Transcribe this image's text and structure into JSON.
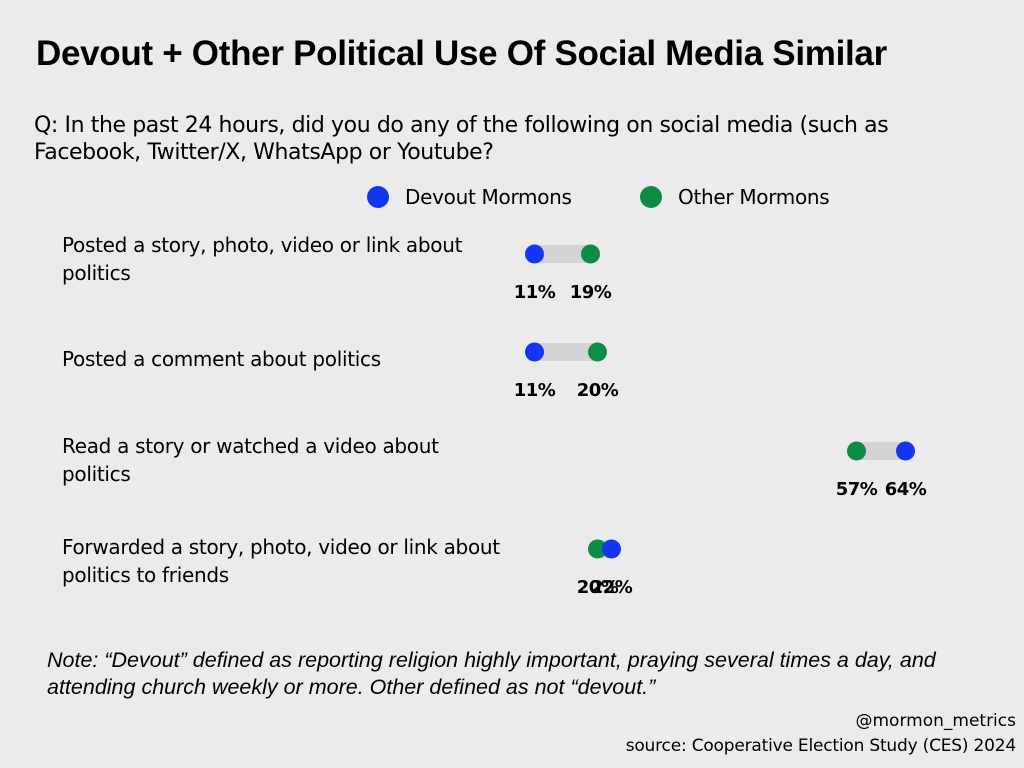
{
  "chart_data": {
    "type": "dumbbell",
    "title": "Devout + Other Political Use Of Social Media Similar",
    "subtitle": "Q: In the past 24 hours, did you do any of the following on social media (such as Facebook, Twitter/X, WhatsApp or Youtube?",
    "categories": [
      "Posted a story, photo, video or link about politics",
      "Posted a comment about politics",
      "Read a story or watched a video about politics",
      "Forwarded a story, photo, video or link about politics to friends"
    ],
    "series": [
      {
        "name": "Devout Mormons",
        "color": "#1536f0",
        "values": [
          11,
          11,
          64,
          22
        ]
      },
      {
        "name": "Other Mormons",
        "color": "#0e8c46",
        "values": [
          19,
          20,
          57,
          20
        ]
      }
    ],
    "value_suffix": "%",
    "connector_color": "#d4d4d4",
    "legend_position": "top",
    "note": "Note: “Devout” defined as reporting religion highly important, praying several times a day, and attending church weekly or more. Other defined as not “devout.”",
    "handle": "@mormon_metrics",
    "source": "source: Cooperative Election Study (CES) 2024"
  }
}
